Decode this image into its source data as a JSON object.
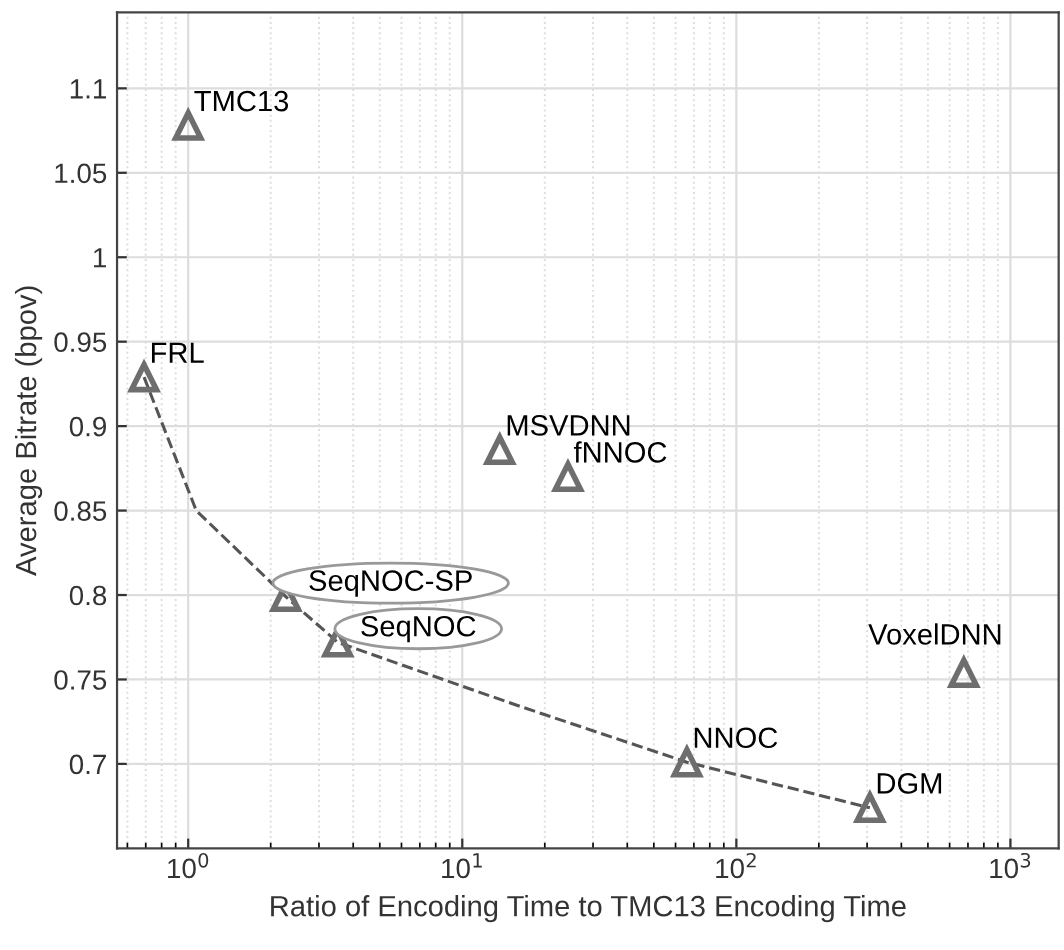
{
  "chart_data": {
    "type": "scatter",
    "xlabel": "Ratio of Encoding Time to TMC13 Encoding Time",
    "ylabel": "Average Bitrate (bpov)",
    "log": "x",
    "xlim": [
      0.55,
      1500
    ],
    "ylim": [
      0.65,
      1.145
    ],
    "xticks": [
      {
        "value": 1,
        "label": "10$^{0}$"
      },
      {
        "value": 10,
        "label": "10$^{1}$"
      },
      {
        "value": 100,
        "label": "10$^{2}$"
      },
      {
        "value": 1000,
        "label": "10$^{3}$"
      }
    ],
    "yticks": [
      0.7,
      0.75,
      0.8,
      0.85,
      0.9,
      0.95,
      1,
      1.05,
      1.1
    ],
    "grid": true,
    "marker": "triangle",
    "series": [
      {
        "color": "#6e6e6e",
        "x": [
          1.0,
          0.69,
          2.27,
          3.51,
          13.7,
          24.3,
          66,
          307,
          676
        ],
        "values": [
          1.078,
          0.929,
          0.799,
          0.772,
          0.886,
          0.87,
          0.701,
          0.674,
          0.754
        ]
      },
      {
        "type": "line",
        "color": "#555555",
        "line_style": "dashed",
        "marker": "none",
        "x": [
          0.69,
          1.07,
          2.27,
          3.51,
          10,
          16.3,
          66,
          307
        ],
        "values": [
          0.929,
          0.85,
          0.799,
          0.772,
          0.746,
          0.734,
          0.701,
          0.674
        ]
      }
    ],
    "annotations": [
      {
        "text": "TMC13",
        "x": 1.0,
        "y": 1.078
      },
      {
        "text": "FRL",
        "x": 0.69,
        "y": 0.929
      },
      {
        "text": "SeqNOC-SP",
        "x": 2.27,
        "y": 0.799
      },
      {
        "text": "SeqNOC",
        "x": 3.51,
        "y": 0.772
      },
      {
        "text": "MSVDNN",
        "x": 13.7,
        "y": 0.886
      },
      {
        "text": "fNNOC",
        "x": 24.3,
        "y": 0.87
      },
      {
        "text": "NNOC",
        "x": 66,
        "y": 0.701
      },
      {
        "text": "DGM",
        "x": 307,
        "y": 0.674
      },
      {
        "text": "VoxelDNN",
        "x": 676,
        "y": 0.754
      }
    ]
  }
}
